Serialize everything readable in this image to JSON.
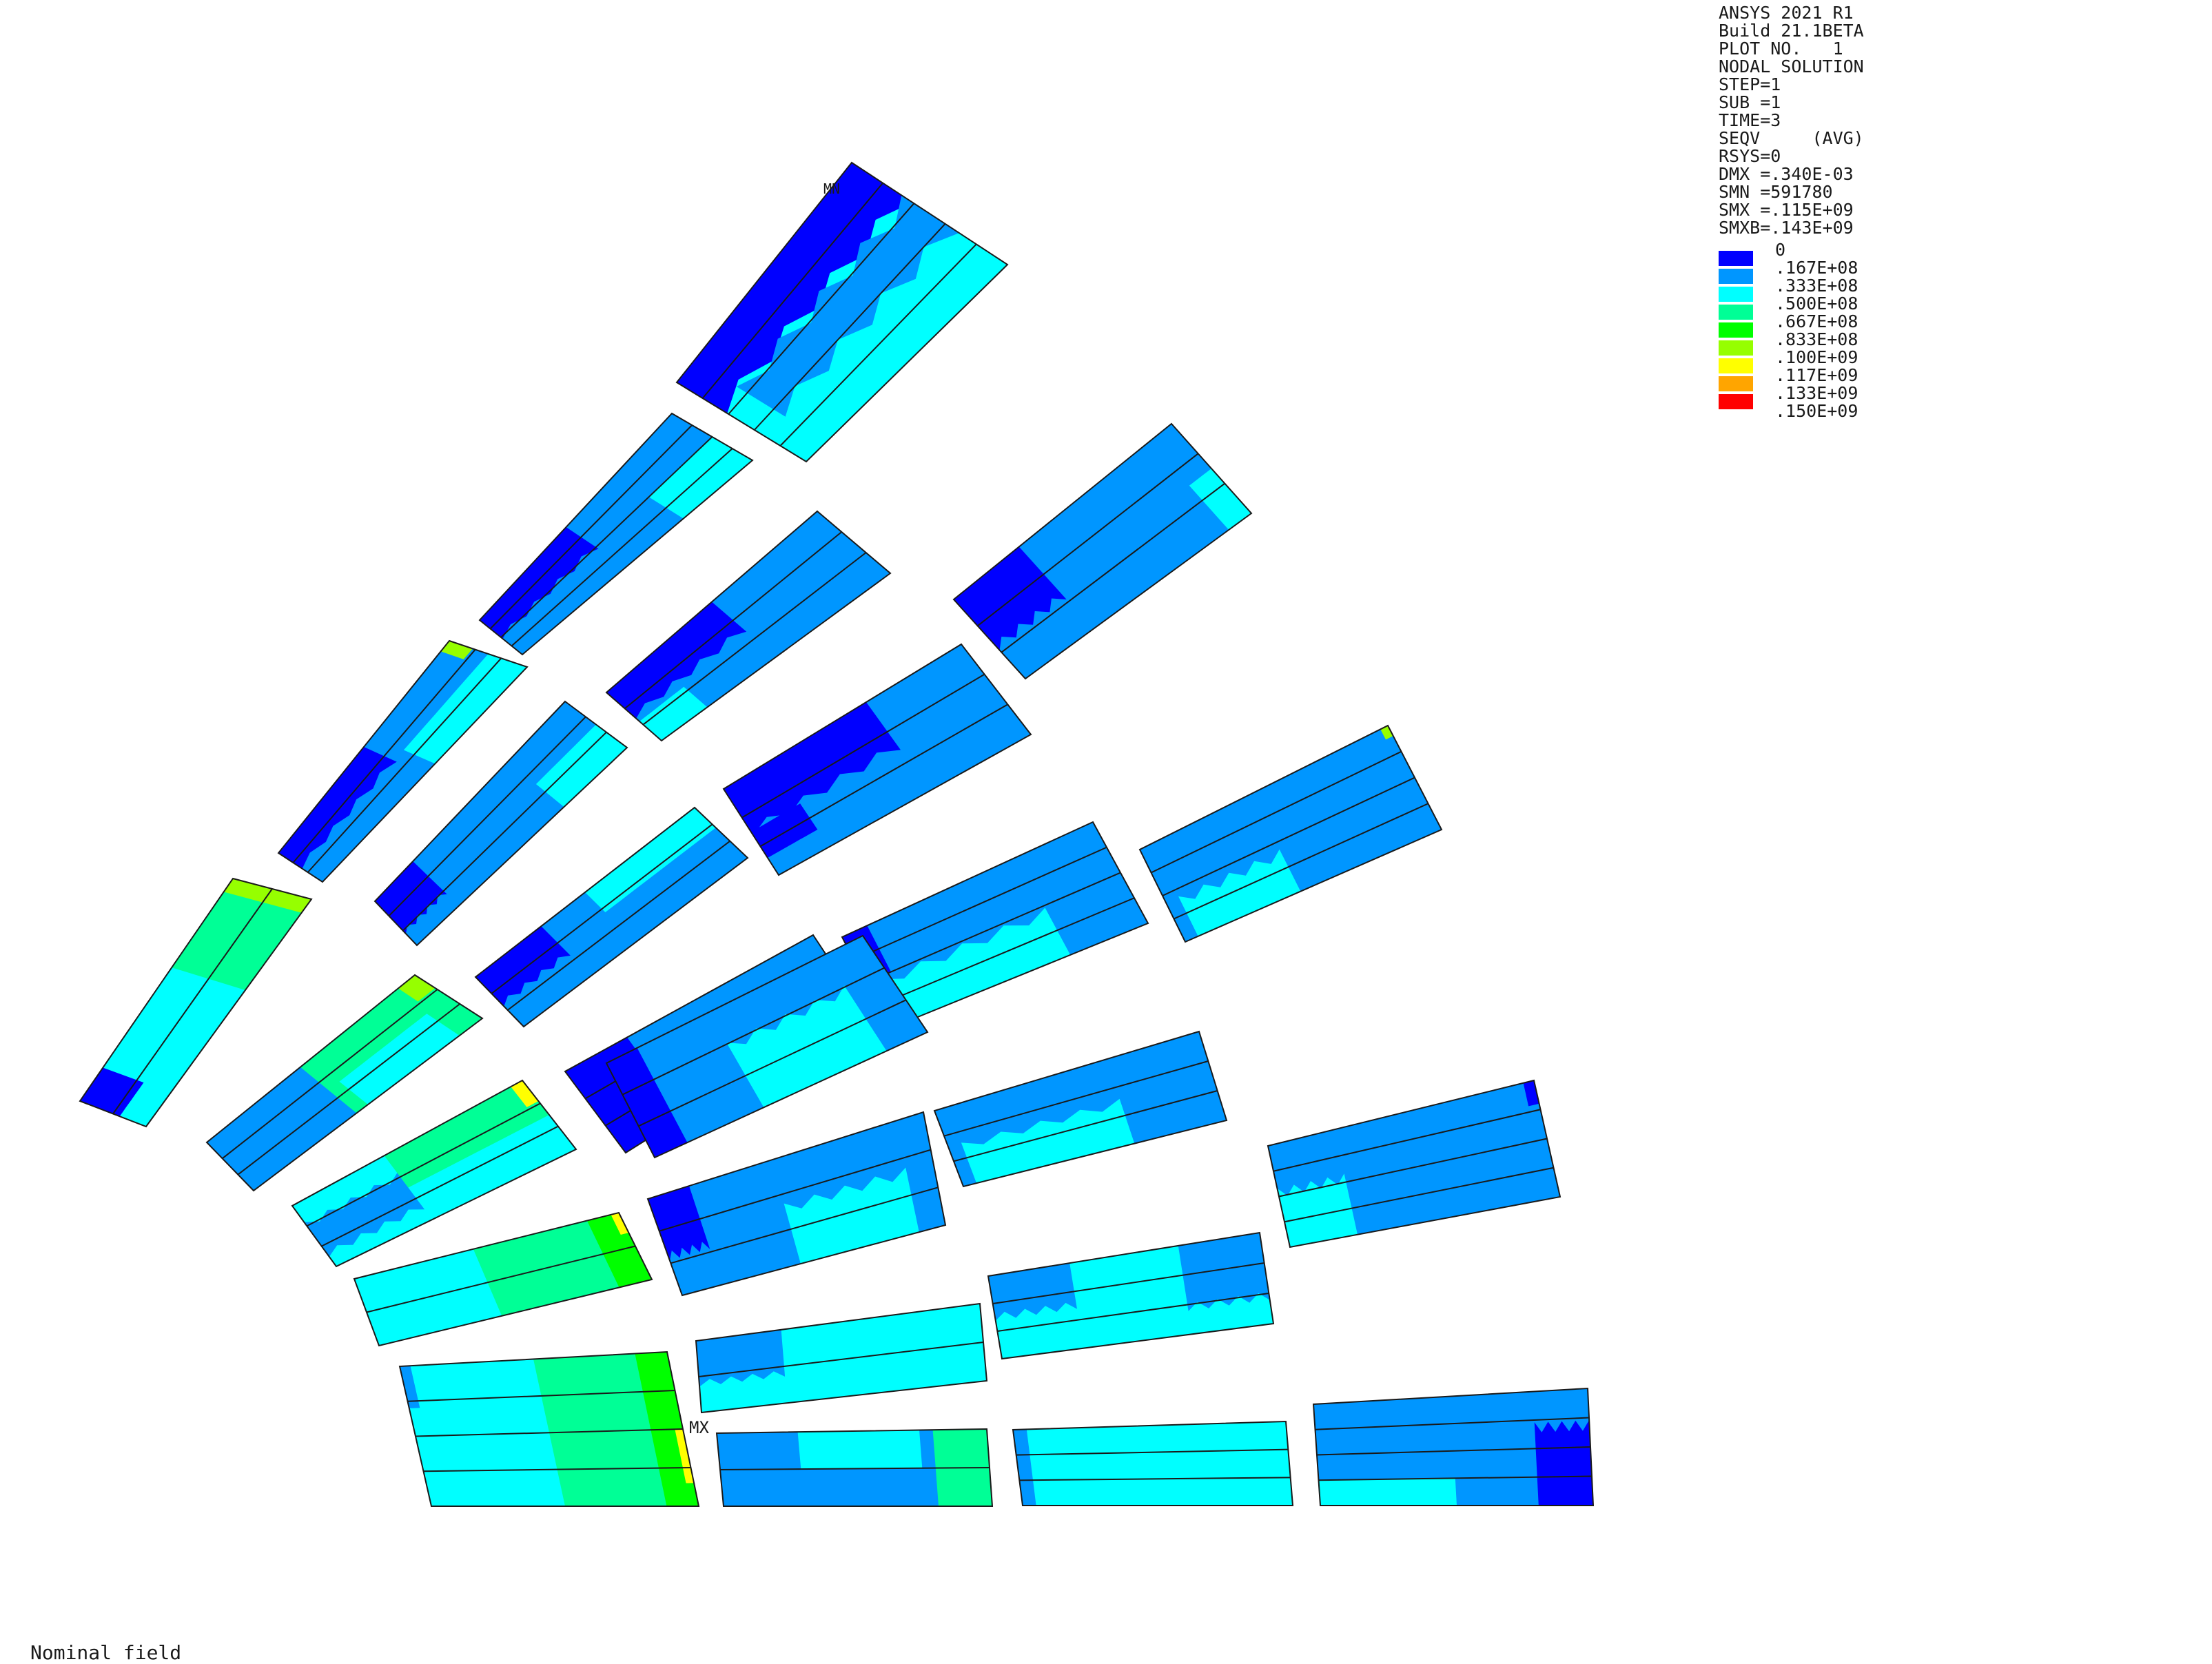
{
  "header": {
    "lines": [
      "ANSYS 2021 R1",
      "Build 21.1BETA",
      "PLOT NO.   1",
      "NODAL SOLUTION",
      "STEP=1",
      "SUB =1",
      "TIME=3",
      "SEQV     (AVG)",
      "RSYS=0",
      "DMX =.340E-03",
      "SMN =591780",
      "SMX =.115E+09",
      "SMXB=.143E+09"
    ]
  },
  "legend": {
    "entries": [
      {
        "label": "0",
        "color": "#0000ff"
      },
      {
        "label": ".167E+08",
        "color": "#0096ff"
      },
      {
        "label": ".333E+08",
        "color": "#00ffff"
      },
      {
        "label": ".500E+08",
        "color": "#00ff96"
      },
      {
        "label": ".667E+08",
        "color": "#00ff00"
      },
      {
        "label": ".833E+08",
        "color": "#96ff00"
      },
      {
        "label": ".100E+09",
        "color": "#ffff00"
      },
      {
        "label": ".117E+09",
        "color": "#ffa500"
      },
      {
        "label": ".133E+09",
        "color": "#ff0000"
      },
      {
        "label": ".150E+09",
        "color": "#ff0000"
      }
    ]
  },
  "markers": {
    "max": "MX",
    "min": "MN"
  },
  "caption": "Nominal field"
}
